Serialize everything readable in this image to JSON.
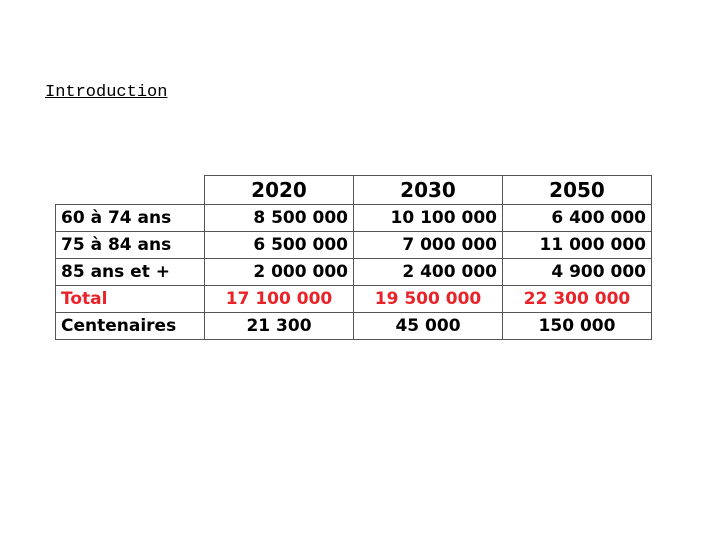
{
  "title": "Introduction",
  "table": {
    "header": [
      "2020",
      "2030",
      "2050"
    ],
    "rows": [
      [
        "60 à 74 ans",
        "8 500 000",
        "10 100 000",
        "6 400 000"
      ],
      [
        "75 à 84 ans",
        "6 500 000",
        "7 000 000",
        "11 000 000"
      ],
      [
        "85 ans et +",
        "2 000 000",
        "2 400 000",
        "4 900 000"
      ],
      [
        "Total",
        "17 100 000",
        "19 500 000",
        "22 300 000"
      ],
      [
        "Centenaires",
        "21 300",
        "45 000",
        "150 000"
      ]
    ]
  }
}
